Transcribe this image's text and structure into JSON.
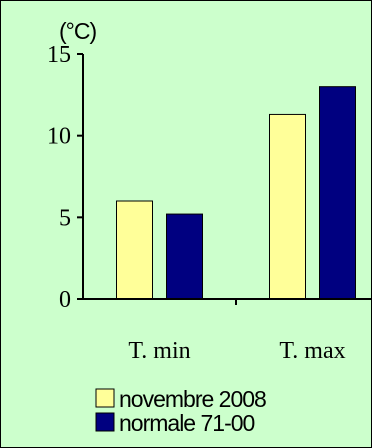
{
  "chart_data": {
    "type": "bar",
    "ylabel": "(°C)",
    "ylim": [
      0,
      15
    ],
    "yticks": [
      0,
      5,
      10,
      15
    ],
    "categories": [
      "T. min",
      "T. max"
    ],
    "series": [
      {
        "name": "novembre 2008",
        "values": [
          6.0,
          11.3
        ],
        "color": "#ffff99"
      },
      {
        "name": "normale 71-00",
        "values": [
          5.2,
          13.0
        ],
        "color": "#000080"
      }
    ],
    "legend_position": "bottom-left",
    "grid": false
  }
}
